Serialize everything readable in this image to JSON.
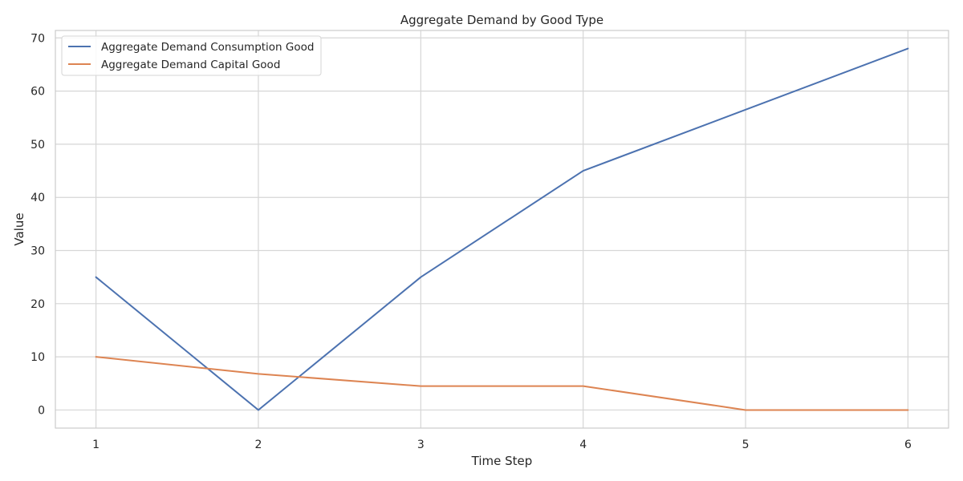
{
  "chart_data": {
    "type": "line",
    "title": "Aggregate Demand by Good Type",
    "xlabel": "Time Step",
    "ylabel": "Value",
    "x": [
      1,
      2,
      3,
      4,
      5,
      6
    ],
    "xticks": [
      "1",
      "2",
      "3",
      "4",
      "5",
      "6"
    ],
    "xlim": [
      0.75,
      6.25
    ],
    "yticks": [
      "0",
      "10",
      "20",
      "30",
      "40",
      "50",
      "60",
      "70"
    ],
    "ylim": [
      -3.4,
      71.4
    ],
    "grid": true,
    "legend_position": "top-left",
    "series": [
      {
        "name": "Aggregate Demand Consumption Good",
        "color": "#4c72b0",
        "values": [
          25,
          0,
          25,
          45,
          56.5,
          68
        ]
      },
      {
        "name": "Aggregate Demand Capital Good",
        "color": "#dd8452",
        "values": [
          10,
          6.8,
          4.5,
          4.5,
          0,
          0
        ]
      }
    ]
  }
}
